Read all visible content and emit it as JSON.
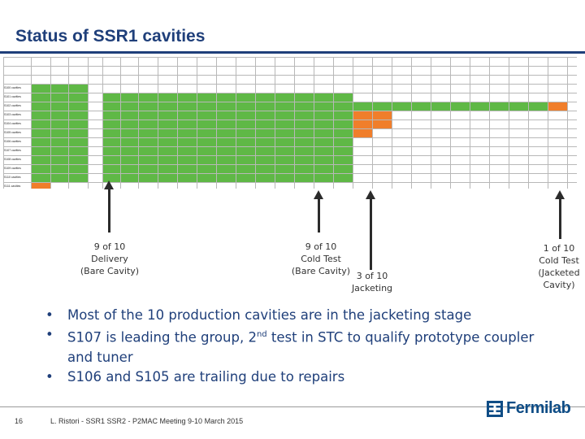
{
  "slide": {
    "title": "Status of SSR1 cavities",
    "page_number": "16",
    "footer": "L. Ristori -  SSR1 SSR2 - P2MAC Meeting 9-10 March 2015",
    "logo_text": "Fermilab",
    "brand_color": "#1f3f7a"
  },
  "grid": {
    "header_row": [
      "",
      "",
      "",
      "",
      "",
      "",
      "",
      "",
      "",
      "",
      "",
      "",
      "",
      "",
      "",
      "",
      "",
      "",
      "",
      "",
      "",
      "",
      "",
      "",
      "",
      "",
      "",
      "",
      "",
      ""
    ],
    "rows": [
      {
        "label": "S100 cavities",
        "note": "",
        "cold_test": "",
        "jacketing": "",
        "s107_marks": [
          "",
          "",
          ""
        ]
      },
      {
        "label": "S101 cavities",
        "note": "",
        "cold_test": "",
        "jacketing": "",
        "s107_marks": [
          "",
          "",
          ""
        ]
      },
      {
        "label": "S102 cavities",
        "note": "",
        "cold_test": "",
        "jacketing": "",
        "s107_marks": [
          "",
          "",
          ""
        ]
      },
      {
        "label": "S103 cavities",
        "note": "",
        "cold_test": "",
        "jacketing": "",
        "s107_marks": [
          "",
          "",
          ""
        ]
      },
      {
        "label": "S104 cavities",
        "note": "",
        "cold_test": "",
        "jacketing": "",
        "s107_marks": [
          "",
          "",
          ""
        ]
      },
      {
        "label": "S105 cavities",
        "note": "",
        "cold_test": "",
        "jacketing": "",
        "s107_marks": [
          "",
          "",
          ""
        ]
      },
      {
        "label": "S106 cavities",
        "note": "",
        "cold_test": "",
        "jacketing": "",
        "s107_marks": [
          "",
          "",
          ""
        ]
      },
      {
        "label": "S107 cavities",
        "note": "",
        "cold_test": "",
        "jacketing": "",
        "s107_marks": [
          "",
          "",
          ""
        ]
      },
      {
        "label": "S108 cavities",
        "note": "",
        "cold_test": "",
        "jacketing": "",
        "s107_marks": [
          "",
          "",
          ""
        ]
      },
      {
        "label": "S109 cavities",
        "note": "",
        "cold_test": "",
        "jacketing": "",
        "s107_marks": [
          "",
          "",
          ""
        ]
      },
      {
        "label": "S110 cavities",
        "note": "",
        "cold_test": "",
        "jacketing": "",
        "s107_marks": [
          "",
          "",
          ""
        ]
      },
      {
        "label": "S111 cavities",
        "note": "",
        "cold_test": "",
        "jacketing": "",
        "s107_marks": [
          "",
          "",
          ""
        ]
      }
    ]
  },
  "annotations": [
    {
      "line1": "9 of 10",
      "line2": "Delivery",
      "line3": "(Bare Cavity)"
    },
    {
      "line1": "9 of 10",
      "line2": "Cold Test",
      "line3": "(Bare Cavity)"
    },
    {
      "line1": "3 of 10",
      "line2": "Jacketing"
    },
    {
      "line1": "1 of 10",
      "line2": "Cold Test",
      "line3": "(Jacketed",
      "line4": "Cavity)"
    }
  ],
  "bullets": [
    {
      "text": "Most of the 10 production cavities are in the jacketing stage"
    },
    {
      "pre": "S107 is leading the group, 2",
      "sup": "nd",
      "post": " test in STC to qualify prototype coupler and tuner"
    },
    {
      "text": "S106 and S105 are trailing due to repairs"
    }
  ]
}
